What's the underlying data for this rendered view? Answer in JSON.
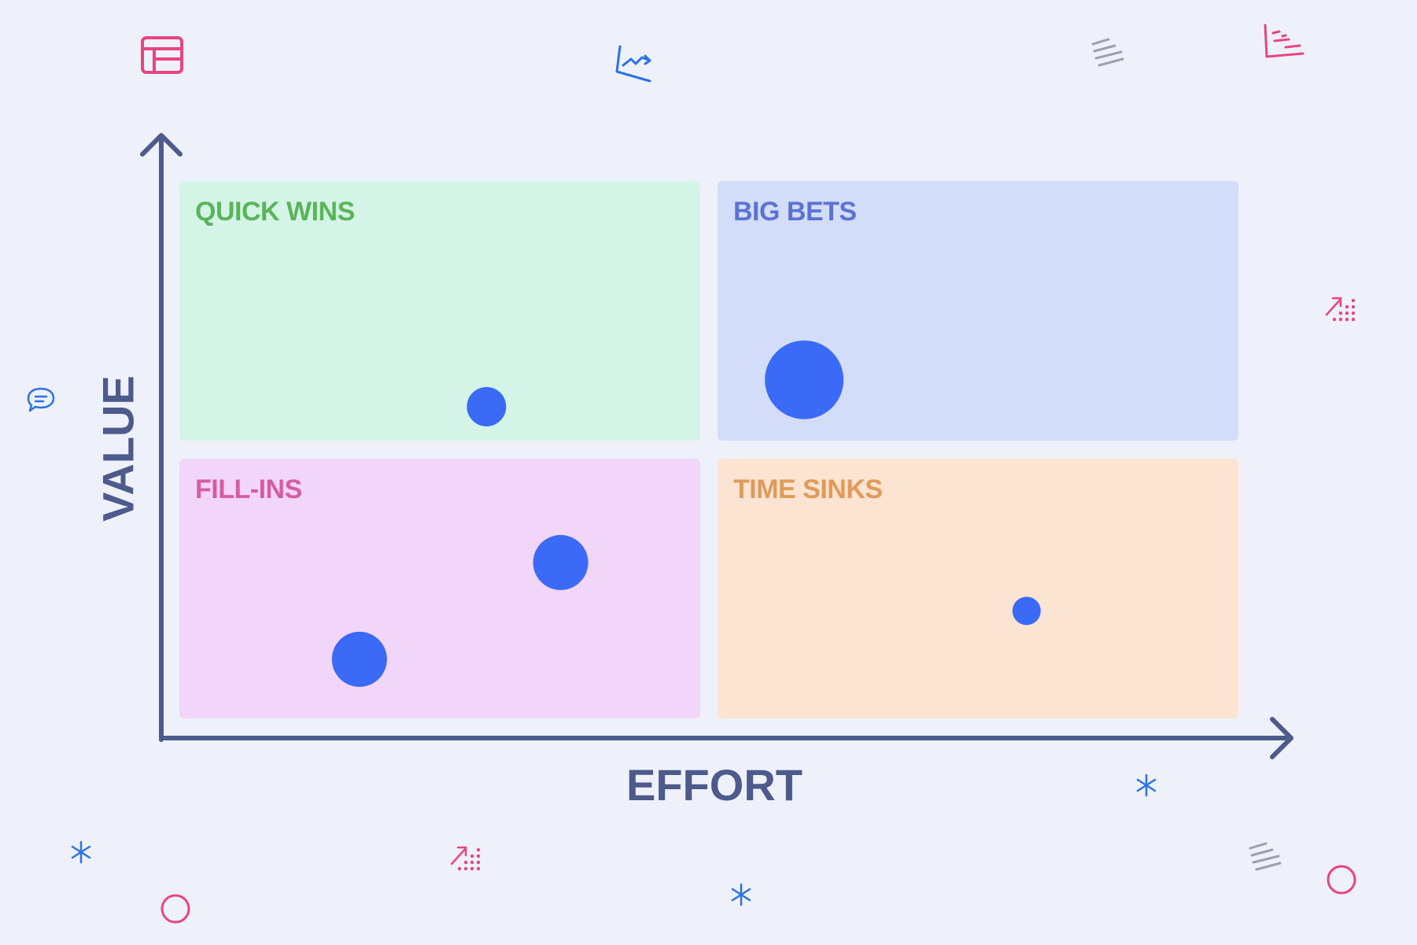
{
  "axes": {
    "x_label": "EFFORT",
    "y_label": "VALUE",
    "color": "#4d5b8c"
  },
  "quadrants": [
    {
      "id": "quick",
      "label": "QUICK WINS",
      "fill": "#d3f4e6",
      "text_color": "#5ab55a"
    },
    {
      "id": "big",
      "label": "BIG BETS",
      "fill": "#d3dcf9",
      "text_color": "#5a74d2"
    },
    {
      "id": "fill",
      "label": "FILL-INS",
      "fill": "#f1d6f9",
      "text_color": "#d65d9f"
    },
    {
      "id": "time",
      "label": "TIME SINKS",
      "fill": "#fbe4d2",
      "text_color": "#e09a5a"
    }
  ],
  "chart_data": {
    "type": "scatter",
    "xlabel": "EFFORT",
    "ylabel": "VALUE",
    "xlim": [
      0,
      1
    ],
    "ylim": [
      0,
      1
    ],
    "points_unit": "effort/value as fraction of axis length; size as relative bubble scale",
    "points": [
      {
        "x": 0.29,
        "y": 0.58,
        "size": 0.5,
        "quadrant": "QUICK WINS"
      },
      {
        "x": 0.59,
        "y": 0.63,
        "size": 1.0,
        "quadrant": "BIG BETS"
      },
      {
        "x": 0.36,
        "y": 0.29,
        "size": 0.7,
        "quadrant": "FILL-INS"
      },
      {
        "x": 0.17,
        "y": 0.11,
        "size": 0.7,
        "quadrant": "FILL-INS"
      },
      {
        "x": 0.8,
        "y": 0.2,
        "size": 0.36,
        "quadrant": "TIME SINKS"
      }
    ],
    "point_color": "#3b6af7"
  },
  "decorations": {
    "pink": "#e8457f",
    "blue": "#2b72e6",
    "gray": "#9aa0ad",
    "icons": [
      "layout-icon",
      "line-chart-icon",
      "lines-icon",
      "bar-list-icon",
      "trend-dots-icon",
      "chat-icon",
      "asterisk-icon",
      "circle-icon"
    ]
  }
}
